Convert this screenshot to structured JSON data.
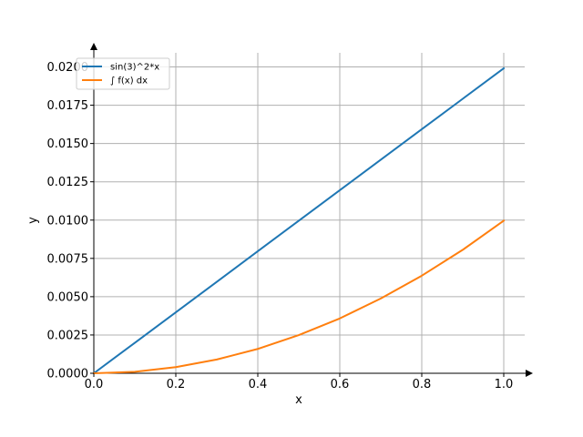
{
  "chart_data": {
    "type": "line",
    "title": "",
    "xlabel": "x",
    "ylabel": "y",
    "xlim": [
      0.0,
      1.0
    ],
    "ylim": [
      0.0,
      0.0205
    ],
    "xticks": [
      "0.0",
      "0.2",
      "0.4",
      "0.6",
      "0.8",
      "1.0"
    ],
    "yticks": [
      "0.0000",
      "0.0025",
      "0.0050",
      "0.0075",
      "0.0100",
      "0.0125",
      "0.0150",
      "0.0175",
      "0.0200"
    ],
    "grid": "x and y",
    "legend_position": "top-left",
    "series": [
      {
        "name": "sin(3)^2*x",
        "color": "#1f77b4",
        "x": [
          0.0,
          0.1,
          0.2,
          0.3,
          0.4,
          0.5,
          0.6,
          0.7,
          0.8,
          0.9,
          1.0
        ],
        "values": [
          0.0,
          0.00199,
          0.00398,
          0.00597,
          0.00797,
          0.00996,
          0.01195,
          0.01394,
          0.01593,
          0.01792,
          0.01991
        ]
      },
      {
        "name": "∫ f(x) dx",
        "color": "#ff7f0e",
        "x": [
          0.0,
          0.1,
          0.2,
          0.3,
          0.4,
          0.5,
          0.6,
          0.7,
          0.8,
          0.9,
          1.0
        ],
        "values": [
          0.0,
          0.0001,
          0.0004,
          0.0009,
          0.00159,
          0.00249,
          0.00358,
          0.00488,
          0.00637,
          0.00806,
          0.00996
        ]
      }
    ]
  }
}
